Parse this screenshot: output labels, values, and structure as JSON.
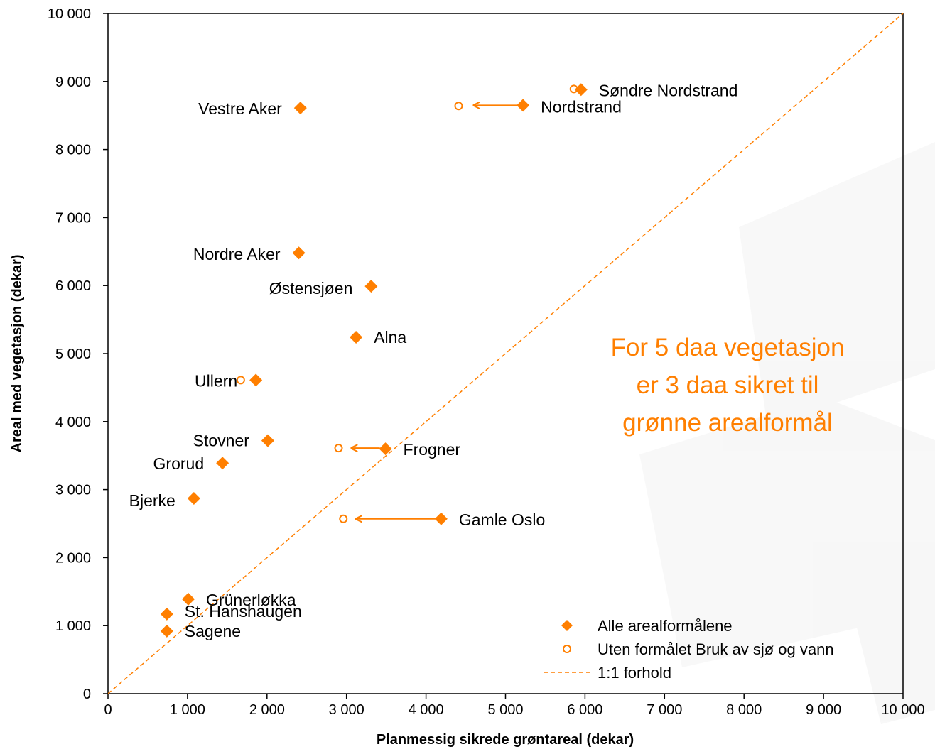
{
  "chart_data": {
    "type": "scatter",
    "xlabel": "Planmessig sikrede grøntareal (dekar)",
    "ylabel": "Areal med vegetasjon (dekar)",
    "xlim": [
      0,
      10000
    ],
    "ylim": [
      0,
      10000
    ],
    "x_ticks": [
      0,
      1000,
      2000,
      3000,
      4000,
      5000,
      6000,
      7000,
      8000,
      9000,
      10000
    ],
    "y_ticks": [
      0,
      1000,
      2000,
      3000,
      4000,
      5000,
      6000,
      7000,
      8000,
      9000,
      10000
    ],
    "x_tick_labels": [
      "0",
      "1 000",
      "2 000",
      "3 000",
      "4 000",
      "5 000",
      "6 000",
      "7 000",
      "8 000",
      "9 000",
      "10 000"
    ],
    "y_tick_labels": [
      "0",
      "1 000",
      "2 000",
      "3 000",
      "4 000",
      "5 000",
      "6 000",
      "7 000",
      "8 000",
      "9 000",
      "10 000"
    ],
    "grid": false,
    "legend_position": "bottom-right",
    "colors": {
      "accent": "#ff7f00",
      "axis": "#000000"
    },
    "series": [
      {
        "name": "Alle arealformålene",
        "marker": "filled-diamond",
        "points": [
          {
            "label": "Søndre Nordstrand",
            "x": 5950,
            "y": 8880
          },
          {
            "label": "Nordstrand",
            "x": 5220,
            "y": 8650
          },
          {
            "label": "Vestre Aker",
            "x": 2420,
            "y": 8610
          },
          {
            "label": "Nordre Aker",
            "x": 2400,
            "y": 6480
          },
          {
            "label": "Østensjøen",
            "x": 3310,
            "y": 5990
          },
          {
            "label": "Alna",
            "x": 3120,
            "y": 5240
          },
          {
            "label": "Ullern",
            "x": 1860,
            "y": 4610
          },
          {
            "label": "Stovner",
            "x": 2010,
            "y": 3720
          },
          {
            "label": "Frogner",
            "x": 3490,
            "y": 3600
          },
          {
            "label": "Grorud",
            "x": 1440,
            "y": 3390
          },
          {
            "label": "Bjerke",
            "x": 1080,
            "y": 2870
          },
          {
            "label": "Gamle Oslo",
            "x": 4190,
            "y": 2570
          },
          {
            "label": "Grünerløkka",
            "x": 1010,
            "y": 1390
          },
          {
            "label": "St. Hanshaugen",
            "x": 740,
            "y": 1170
          },
          {
            "label": "Sagene",
            "x": 740,
            "y": 920
          }
        ]
      },
      {
        "name": "Uten formålet Bruk av sjø og vann",
        "marker": "open-circle",
        "points": [
          {
            "ref": "Søndre Nordstrand",
            "x": 5860,
            "y": 8890
          },
          {
            "ref": "Nordstrand",
            "x": 4410,
            "y": 8640
          },
          {
            "ref": "Ullern",
            "x": 1670,
            "y": 4610
          },
          {
            "ref": "Frogner",
            "x": 2900,
            "y": 3610
          },
          {
            "ref": "Gamle Oslo",
            "x": 2960,
            "y": 2570
          }
        ]
      },
      {
        "name": "1:1 forhold",
        "marker": "dashed-line",
        "x": [
          0,
          10000
        ],
        "y": [
          0,
          10000
        ]
      }
    ],
    "arrows": [
      {
        "ref": "Nordstrand",
        "from": [
          5150,
          8650
        ],
        "to": [
          4600,
          8650
        ]
      },
      {
        "ref": "Frogner",
        "from": [
          3420,
          3610
        ],
        "to": [
          3060,
          3610
        ]
      },
      {
        "ref": "Gamle Oslo",
        "from": [
          4120,
          2570
        ],
        "to": [
          3120,
          2570
        ]
      }
    ],
    "annotation": {
      "lines": [
        "For 5 daa vegetasjon",
        "er 3 daa sikret til",
        "grønne arealformål"
      ],
      "color": "#ff7f00"
    }
  }
}
